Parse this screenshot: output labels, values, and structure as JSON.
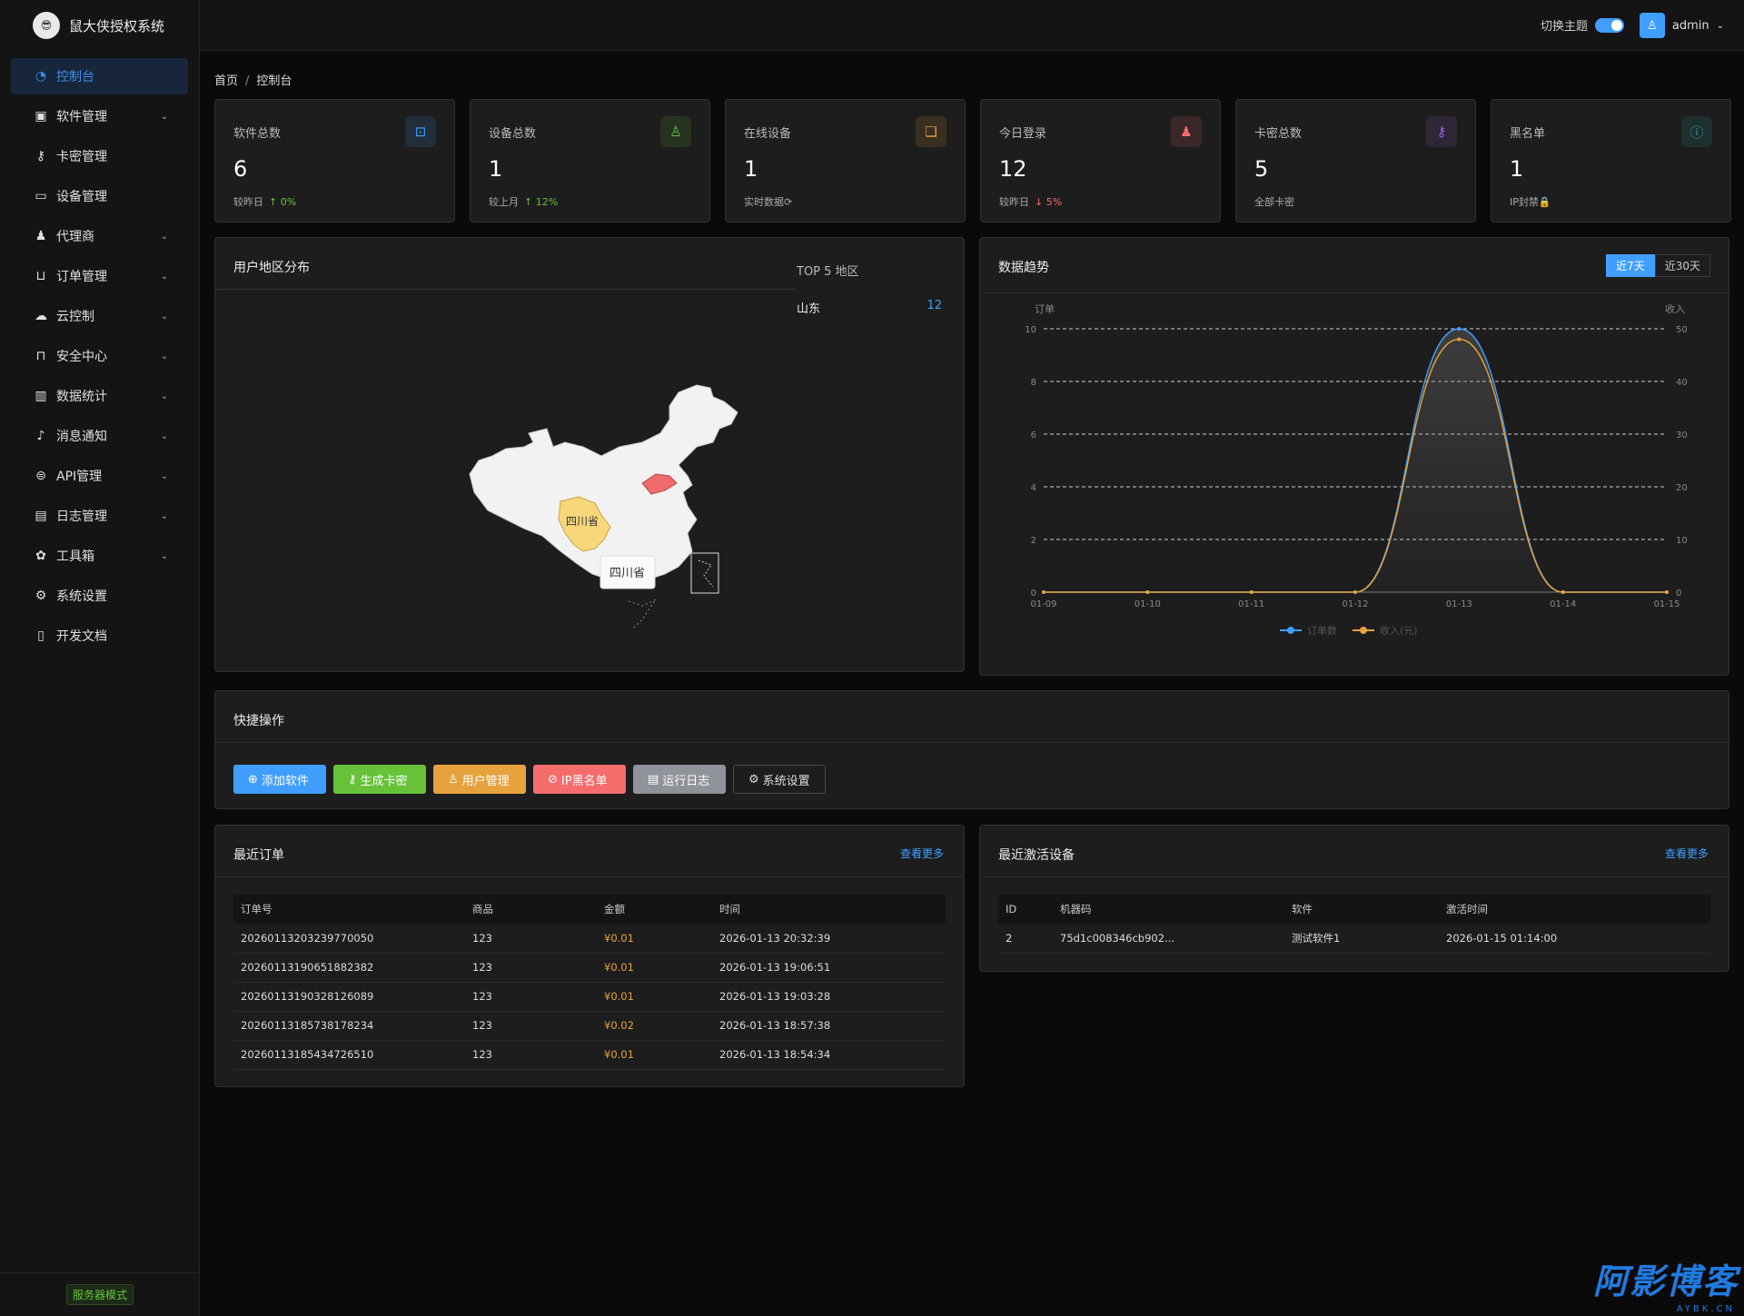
{
  "app": {
    "title": "鼠大侠授权系统",
    "server_mode": "服务器模式",
    "logo_glyph": "😎"
  },
  "sidebar": {
    "items": [
      {
        "label": "控制台",
        "icon": "dashboard-icon"
      },
      {
        "label": "软件管理",
        "icon": "box-icon"
      },
      {
        "label": "卡密管理",
        "icon": "key-icon"
      },
      {
        "label": "设备管理",
        "icon": "monitor-icon"
      },
      {
        "label": "代理商",
        "icon": "user-icon"
      },
      {
        "label": "订单管理",
        "icon": "cart-icon"
      },
      {
        "label": "云控制",
        "icon": "cloud-icon"
      },
      {
        "label": "安全中心",
        "icon": "lock-icon"
      },
      {
        "label": "数据统计",
        "icon": "chart-icon"
      },
      {
        "label": "消息通知",
        "icon": "bell-icon"
      },
      {
        "label": "API管理",
        "icon": "link-icon"
      },
      {
        "label": "日志管理",
        "icon": "document-icon"
      },
      {
        "label": "工具箱",
        "icon": "gear-icon"
      },
      {
        "label": "系统设置",
        "icon": "settings-icon"
      },
      {
        "label": "开发文档",
        "icon": "book-icon"
      }
    ]
  },
  "header": {
    "theme_label": "切换主题",
    "username": "admin"
  },
  "breadcrumb": {
    "home": "首页",
    "current": "控制台"
  },
  "stats": [
    {
      "label": "软件总数",
      "value": "6",
      "sub": "较昨日",
      "trend": "↑ 0%",
      "trend_dir": "up",
      "icon": "package-icon",
      "color": "#409eff"
    },
    {
      "label": "设备总数",
      "value": "1",
      "sub": "较上月",
      "trend": "↑ 12%",
      "trend_dir": "up",
      "icon": "person-icon",
      "color": "#67c23a"
    },
    {
      "label": "在线设备",
      "value": "1",
      "sub": "实时数据",
      "trend": "⟳",
      "trend_dir": "none",
      "icon": "chat-icon",
      "color": "#e6a23c"
    },
    {
      "label": "今日登录",
      "value": "12",
      "sub": "较昨日",
      "trend": "↓ 5%",
      "trend_dir": "down",
      "icon": "person-fill-icon",
      "color": "#f56c6c"
    },
    {
      "label": "卡密总数",
      "value": "5",
      "sub": "全部卡密",
      "trend": "",
      "trend_dir": "none",
      "icon": "key-icon",
      "color": "#a55eea"
    },
    {
      "label": "黑名单",
      "value": "1",
      "sub": "IP封禁",
      "trend": "🔒",
      "trend_dir": "none",
      "icon": "info-icon",
      "color": "#26a6a6"
    }
  ],
  "region": {
    "title": "用户地区分布",
    "top5_title": "TOP 5 地区",
    "rows": [
      {
        "name": "山东",
        "count": "12"
      }
    ],
    "map_label": "四川省",
    "tooltip": "四川省"
  },
  "trend": {
    "title": "数据趋势",
    "btn_7": "近7天",
    "btn_30": "近30天"
  },
  "chart_data": {
    "type": "line",
    "x": [
      "01-09",
      "01-10",
      "01-11",
      "01-12",
      "01-13",
      "01-14",
      "01-15"
    ],
    "series": [
      {
        "name": "订单数",
        "values": [
          0,
          0,
          0,
          0,
          10,
          0,
          0
        ],
        "axis": "left",
        "color": "#409eff"
      },
      {
        "name": "收入(元)",
        "values": [
          0,
          0,
          0,
          0,
          48,
          0,
          0
        ],
        "axis": "right",
        "color": "#e6a23c"
      }
    ],
    "ylabel_left": "订单",
    "ylabel_right": "收入",
    "ylim_left": [
      0,
      10
    ],
    "yticks_left": [
      0,
      2,
      4,
      6,
      8,
      10
    ],
    "ylim_right": [
      0,
      50
    ],
    "yticks_right": [
      0,
      10,
      20,
      30,
      40,
      50
    ],
    "grid": true,
    "legend": "bottom"
  },
  "quick": {
    "title": "快捷操作",
    "buttons": [
      {
        "label": "添加软件",
        "glyph": "⊕",
        "color": "#409eff"
      },
      {
        "label": "生成卡密",
        "glyph": "⚷",
        "color": "#67c23a"
      },
      {
        "label": "用户管理",
        "glyph": "♙",
        "color": "#e6a23c"
      },
      {
        "label": "IP黑名单",
        "glyph": "⊘",
        "color": "#f56c6c"
      },
      {
        "label": "运行日志",
        "glyph": "▤",
        "color": "#909399"
      },
      {
        "label": "系统设置",
        "glyph": "⚙",
        "color": "transparent"
      }
    ]
  },
  "orders": {
    "title": "最近订单",
    "more": "查看更多",
    "columns": [
      "订单号",
      "商品",
      "金额",
      "时间"
    ],
    "rows": [
      [
        "20260113203239770050",
        "123",
        "¥0.01",
        "2026-01-13 20:32:39"
      ],
      [
        "20260113190651882382",
        "123",
        "¥0.01",
        "2026-01-13 19:06:51"
      ],
      [
        "20260113190328126089",
        "123",
        "¥0.01",
        "2026-01-13 19:03:28"
      ],
      [
        "20260113185738178234",
        "123",
        "¥0.02",
        "2026-01-13 18:57:38"
      ],
      [
        "20260113185434726510",
        "123",
        "¥0.01",
        "2026-01-13 18:54:34"
      ]
    ]
  },
  "devices": {
    "title": "最近激活设备",
    "more": "查看更多",
    "columns": [
      "ID",
      "机器码",
      "软件",
      "激活时间"
    ],
    "rows": [
      [
        "2",
        "75d1c008346cb902...",
        "测试软件1",
        "2026-01-15 01:14:00"
      ]
    ]
  },
  "watermark": {
    "text": "阿影博客",
    "sub": "AYBK.CN"
  }
}
